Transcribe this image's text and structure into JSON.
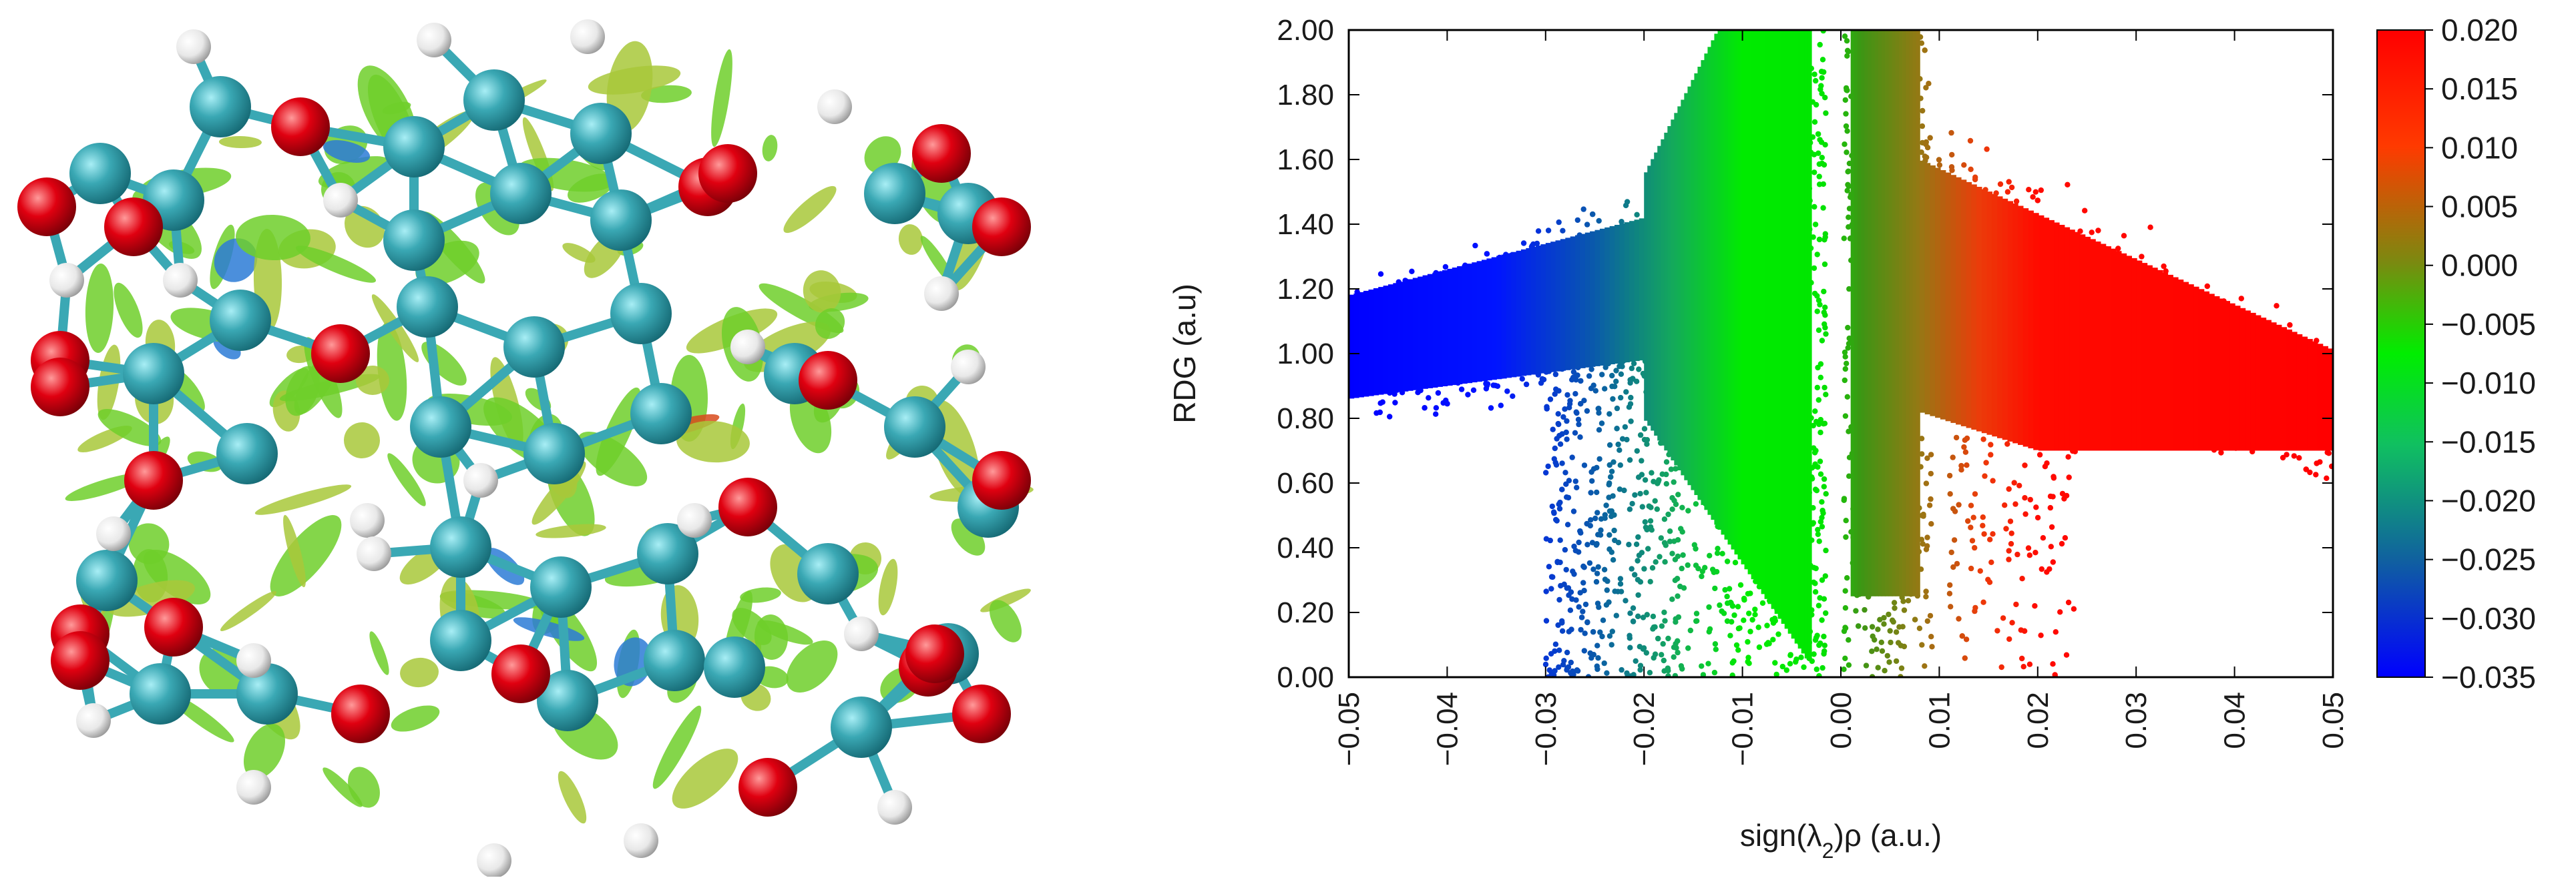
{
  "chart_data": {
    "type": "scatter",
    "ylabel": "RDG (a.u)",
    "xlabel_prefix": "sign(λ",
    "xlabel_sub": "2",
    "xlabel_suffix": ")ρ (a.u.)",
    "xlim": [
      -0.05,
      0.05
    ],
    "ylim": [
      0.0,
      2.0
    ],
    "x_ticks": [
      "-0.05",
      "-0.04",
      "-0.03",
      "-0.02",
      "-0.01",
      "0.00",
      "0.01",
      "0.02",
      "0.03",
      "0.04",
      "0.05"
    ],
    "y_ticks": [
      "0.00",
      "0.20",
      "0.40",
      "0.60",
      "0.80",
      "1.00",
      "1.20",
      "1.40",
      "1.60",
      "1.80",
      "2.00"
    ],
    "colorbar": {
      "range": [
        -0.035,
        0.02
      ],
      "ticks": [
        "0.020",
        "0.015",
        "0.010",
        "0.005",
        "0.000",
        "-0.005",
        "-0.010",
        "-0.015",
        "-0.020",
        "-0.025",
        "-0.030",
        "-0.035"
      ],
      "colors": [
        "#ff0000",
        "#00ee00",
        "#0000ff"
      ]
    },
    "clusters": [
      {
        "x_range": [
          -0.05,
          -0.025
        ],
        "y_center": 1.05,
        "y_spread": 0.25
      },
      {
        "x_range": [
          -0.03,
          -0.015
        ],
        "y_center": 0.4,
        "y_spread": 0.4
      },
      {
        "x_range": [
          -0.018,
          -0.002
        ],
        "y_center": 1.0,
        "y_spread": 1.0
      },
      {
        "x_range": [
          0.0,
          0.01
        ],
        "y_center": 1.0,
        "y_spread": 1.0
      },
      {
        "x_range": [
          0.01,
          0.05
        ],
        "y_center": 0.85,
        "y_spread": 0.3
      },
      {
        "x_range": [
          0.012,
          0.022
        ],
        "y_center": 0.3,
        "y_spread": 0.3
      }
    ],
    "legend": "right"
  },
  "molecule": {
    "atom_colors": {
      "carbon": "#3aa8b4",
      "oxygen": "#e00010",
      "hydrogen": "#f2f2f2"
    },
    "isosurface_colors": [
      "#6fcf2a",
      "#a8c83a",
      "#2c7bd6",
      "#d84a1c"
    ]
  }
}
